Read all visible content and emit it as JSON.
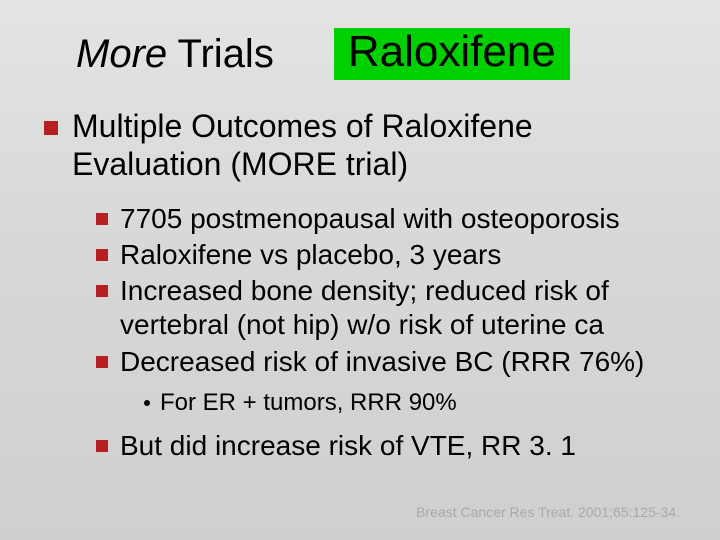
{
  "colors": {
    "background_gradient_top": "#e4e4e4",
    "background_gradient_bottom": "#cfcfcf",
    "bullet_square": "#b62025",
    "pill_background": "#00d000",
    "text": "#000000",
    "citation": "#a8a8b0"
  },
  "title": {
    "left_italic": "More",
    "left_rest": " Trials",
    "pill": "Raloxifene"
  },
  "main": {
    "heading": "Multiple Outcomes of Raloxifene Evaluation (MORE trial)",
    "sub": [
      "7705 postmenopausal with osteoporosis",
      "Raloxifene vs placebo, 3 years",
      "Increased bone density; reduced risk of vertebral (not hip) w/o risk of uterine ca",
      "Decreased risk of invasive BC (RRR 76%)"
    ],
    "subsub": [
      "For ER + tumors, RRR 90%"
    ],
    "sub2": [
      "But did increase risk of VTE, RR 3. 1"
    ]
  },
  "citation": "Breast Cancer Res Treat. 2001;65:125-34."
}
